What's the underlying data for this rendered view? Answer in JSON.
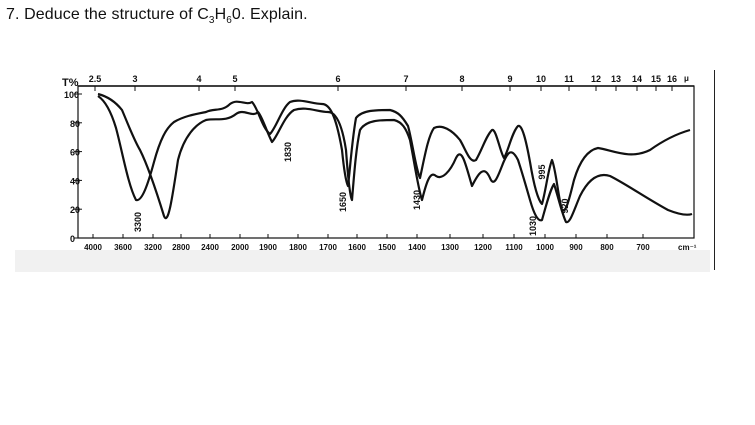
{
  "question": {
    "prefix": "7. Deduce the structure of C",
    "sub1": "3",
    "mid": "H",
    "sub2": "6",
    "suffix": "0. Explain."
  },
  "spectrum": {
    "t_label": "T%",
    "y_ticks": [
      "100",
      "80",
      "60",
      "40",
      "20",
      "0"
    ],
    "micron_ticks": [
      "2.5",
      "3",
      "4",
      "5",
      "6",
      "7",
      "8",
      "9",
      "10",
      "11",
      "12",
      "13",
      "14",
      "15",
      "16"
    ],
    "micron_unit": "μ",
    "wavenumber_ticks": [
      "4000",
      "3600",
      "3200",
      "2800",
      "2400",
      "2000",
      "1900",
      "1800",
      "1700",
      "1600",
      "1500",
      "1400",
      "1300",
      "1200",
      "1100",
      "1000",
      "900",
      "800",
      "700"
    ],
    "wavenumber_unit": "cm⁻¹",
    "peak_labels": [
      "3300",
      "1830",
      "1650",
      "1430",
      "1030",
      "995",
      "920"
    ]
  }
}
